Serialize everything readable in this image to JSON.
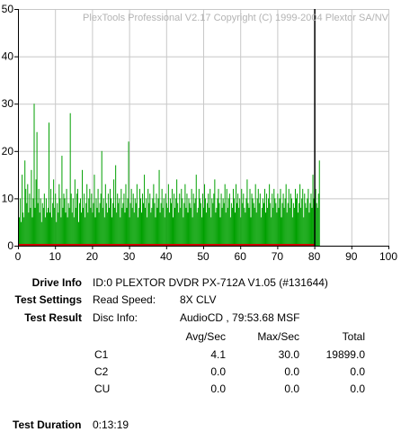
{
  "app": {
    "copyright": "PlexTools Professional V2.17 Copyright (C) 1999-2004 Plextor SA/NV"
  },
  "chart_data": {
    "type": "bar",
    "title": "",
    "xlabel": "",
    "ylabel": "",
    "xlim": [
      0,
      100
    ],
    "ylim": [
      0,
      50
    ],
    "x_ticks": [
      0,
      10,
      20,
      30,
      40,
      50,
      60,
      70,
      80,
      90,
      100
    ],
    "y_ticks": [
      0,
      10,
      20,
      30,
      40,
      50
    ],
    "grid": true,
    "disc_end_marker_x": 80,
    "colors": {
      "c1": "#00a000",
      "c2": "#cc0000",
      "marker": "#000000",
      "grid": "#c8c8c8"
    },
    "series": [
      {
        "x_start": 0,
        "x_step": 0.25,
        "values": [
          14,
          6,
          10,
          5,
          15,
          7,
          6,
          18,
          12,
          9,
          13,
          7,
          11,
          8,
          16,
          6,
          10,
          30,
          8,
          14,
          24,
          9,
          12,
          7,
          10,
          5,
          9,
          8,
          11,
          6,
          10,
          7,
          8,
          26,
          7,
          12,
          6,
          9,
          14,
          8,
          11,
          5,
          9,
          7,
          13,
          10,
          6,
          19,
          8,
          11,
          10,
          7,
          12,
          6,
          9,
          8,
          28,
          11,
          7,
          10,
          6,
          14,
          8,
          11,
          12,
          5,
          9,
          10,
          7,
          16,
          8,
          11,
          6,
          9,
          13,
          7,
          10,
          12,
          8,
          11,
          7,
          9,
          15,
          6,
          10,
          8,
          12,
          7,
          9,
          11,
          20,
          8,
          10,
          6,
          13,
          9,
          7,
          11,
          8,
          12,
          10,
          6,
          9,
          14,
          8,
          17,
          7,
          11,
          9,
          10,
          6,
          12,
          8,
          9,
          11,
          7,
          13,
          8,
          10,
          22,
          6,
          9,
          12,
          8,
          11,
          7,
          10,
          9,
          13,
          6,
          8,
          12,
          10,
          7,
          11,
          9,
          15,
          8,
          10,
          6,
          12,
          9,
          11,
          7,
          8,
          10,
          13,
          9,
          6,
          11,
          8,
          10,
          16,
          7,
          9,
          12,
          8,
          10,
          6,
          11,
          9,
          8,
          13,
          7,
          10,
          9,
          12,
          6,
          11,
          8,
          10,
          14,
          9,
          7,
          11,
          8,
          12,
          10,
          6,
          9,
          13,
          8,
          11,
          7,
          10,
          9,
          8,
          12,
          6,
          11,
          9,
          10,
          15,
          7,
          8,
          12,
          10,
          9,
          6,
          11,
          8,
          13,
          10,
          7,
          9,
          11,
          8,
          12,
          6,
          10,
          9,
          11,
          14,
          7,
          8,
          10,
          12,
          9,
          6,
          11,
          8,
          10,
          9,
          13,
          7,
          12,
          8,
          10,
          11,
          6,
          9,
          8,
          12,
          10,
          7,
          13,
          9,
          11,
          8,
          10,
          6,
          12,
          9,
          11,
          8,
          7,
          10,
          14,
          9,
          8,
          12,
          6,
          11,
          10,
          9,
          8,
          13,
          7,
          10,
          12,
          9,
          11,
          6,
          8,
          10,
          9,
          12,
          7,
          11,
          8,
          10,
          13,
          9,
          6,
          11,
          8,
          12,
          10,
          9,
          7,
          11,
          8,
          10,
          12,
          6,
          9,
          11,
          8,
          10,
          13,
          7,
          9,
          12,
          8,
          11,
          10,
          6,
          9,
          8,
          12,
          10,
          11,
          7,
          9,
          13,
          8,
          10,
          12,
          6,
          11,
          9,
          8,
          10,
          12,
          7,
          9,
          11,
          8,
          15,
          10,
          6,
          12,
          9,
          8,
          11,
          18
        ]
      },
      {
        "x_start": 0,
        "x_step": 80,
        "values": [
          0.3,
          0.3
        ]
      }
    ]
  },
  "info": {
    "drive_info_label": "Drive Info",
    "drive_info_value": "ID:0 PLEXTOR DVDR PX-712A V1.05 (#131644)",
    "test_settings_label": "Test Settings",
    "read_speed_label": "Read Speed:",
    "read_speed_value": "8X CLV",
    "test_result_label": "Test Result",
    "disc_info_label": "Disc Info:",
    "disc_info_value": "AudioCD , 79:53.68 MSF",
    "columns": [
      "Avg/Sec",
      "Max/Sec",
      "Total"
    ],
    "rows": [
      {
        "name": "C1",
        "avg": "4.1",
        "max": "30.0",
        "total": "19899.0"
      },
      {
        "name": "C2",
        "avg": "0.0",
        "max": "0.0",
        "total": "0.0"
      },
      {
        "name": "CU",
        "avg": "0.0",
        "max": "0.0",
        "total": "0.0"
      }
    ],
    "test_duration_label": "Test Duration",
    "test_duration_value": "0:13:19"
  }
}
